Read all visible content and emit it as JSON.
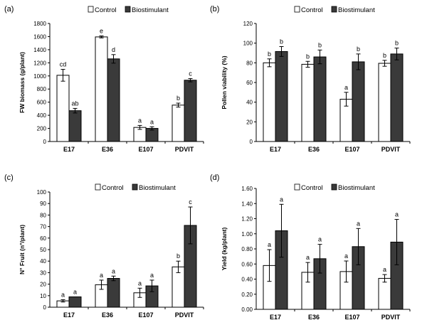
{
  "colors": {
    "control": "#ffffff",
    "biostimulant": "#3a3a3a",
    "axis": "#000000"
  },
  "legend": {
    "control": "Control",
    "biostimulant": "Biostimulant"
  },
  "chart_data": [
    {
      "type": "bar",
      "panel": "(a)",
      "ylabel": "FW biomass (g/plant)",
      "categories": [
        "E17",
        "E36",
        "E107",
        "PDVIT"
      ],
      "yticks": [
        "0",
        "200",
        "400",
        "600",
        "800",
        "1000",
        "1200",
        "1400",
        "1600",
        "1800"
      ],
      "ylim": [
        0,
        1800
      ],
      "grid": false,
      "series": [
        {
          "name": "Control",
          "values": [
            1010,
            1595,
            215,
            555
          ],
          "errors": [
            90,
            15,
            30,
            30
          ],
          "labels": [
            "cd",
            "e",
            "a",
            "b"
          ]
        },
        {
          "name": "Biostimulant",
          "values": [
            470,
            1260,
            200,
            935
          ],
          "errors": [
            35,
            65,
            25,
            25
          ],
          "labels": [
            "ab",
            "d",
            "a",
            "c"
          ]
        }
      ]
    },
    {
      "type": "bar",
      "panel": "(b)",
      "ylabel": "Pollen viability (%)",
      "categories": [
        "E17",
        "E36",
        "E107",
        "PDVIT"
      ],
      "yticks": [
        "0",
        "20",
        "40",
        "60",
        "80",
        "100",
        "120"
      ],
      "ylim": [
        0,
        120
      ],
      "grid": false,
      "series": [
        {
          "name": "Control",
          "values": [
            80,
            78.5,
            43,
            79.5
          ],
          "errors": [
            4,
            3,
            7,
            3
          ],
          "labels": [
            "b",
            "b",
            "a",
            "b"
          ]
        },
        {
          "name": "Biostimulant",
          "values": [
            91.5,
            86,
            81,
            89
          ],
          "errors": [
            5,
            7,
            8,
            6
          ],
          "labels": [
            "b",
            "b",
            "b",
            "b"
          ]
        }
      ]
    },
    {
      "type": "bar",
      "panel": "(c)",
      "ylabel": "N° Fruit (n°/plant)",
      "categories": [
        "E17",
        "E36",
        "E107",
        "PDVIT"
      ],
      "yticks": [
        "0",
        "10",
        "20",
        "30",
        "40",
        "50",
        "60",
        "70",
        "80",
        "90",
        "100"
      ],
      "ylim": [
        0,
        100
      ],
      "grid": false,
      "series": [
        {
          "name": "Control",
          "values": [
            5.5,
            19.5,
            12.5,
            35
          ],
          "errors": [
            1,
            4,
            4,
            5
          ],
          "labels": [
            "a",
            "a",
            "a",
            "b"
          ]
        },
        {
          "name": "Biostimulant",
          "values": [
            9,
            25,
            18.5,
            71
          ],
          "errors": [
            0,
            2,
            5,
            16
          ],
          "labels": [
            "a",
            "a",
            "a",
            "c"
          ]
        }
      ]
    },
    {
      "type": "bar",
      "panel": "(d)",
      "ylabel": "Yield (kg/plant)",
      "categories": [
        "E17",
        "E36",
        "E107",
        "PDVIT"
      ],
      "yticks": [
        "0.00",
        "0.20",
        "0.40",
        "0.60",
        "0.80",
        "1.00",
        "1.20",
        "1.40",
        "1.60"
      ],
      "ylim": [
        0,
        1.6
      ],
      "grid": false,
      "series": [
        {
          "name": "Control",
          "values": [
            0.58,
            0.49,
            0.5,
            0.41
          ],
          "errors": [
            0.21,
            0.13,
            0.14,
            0.05
          ],
          "labels": [
            "a",
            "a",
            "a",
            "a"
          ]
        },
        {
          "name": "Biostimulant",
          "values": [
            1.04,
            0.67,
            0.83,
            0.89
          ],
          "errors": [
            0.35,
            0.19,
            0.24,
            0.3
          ],
          "labels": [
            "a",
            "a",
            "a",
            "a"
          ]
        }
      ]
    }
  ]
}
